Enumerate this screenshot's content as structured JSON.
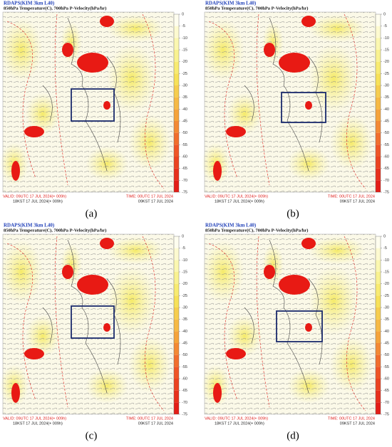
{
  "header": {
    "title": "RDAPS(KIM 3km L40)",
    "subtitle": "850hPa Temperature(C), 700hPa P-Velocity(hPa/hr)"
  },
  "footer": {
    "valid_utc": "VALID: 09UTC 17 JUL 2024(+ 009h)",
    "valid_kst": "18KST 17 JUL 2024(+ 009h)",
    "time_utc": "TIME: 00UTC 17 JUL 2024",
    "time_kst": "09KST 17 JUL 2024"
  },
  "colorbar": {
    "range": [
      0,
      -75
    ],
    "ticks": [
      0,
      -5,
      -10,
      -15,
      -20,
      -25,
      -30,
      -35,
      -40,
      -45,
      -50,
      -55,
      -60,
      -65,
      -70,
      -75
    ]
  },
  "panels": [
    {
      "label": "(a)"
    },
    {
      "label": "(b)"
    },
    {
      "label": "(c)"
    },
    {
      "label": "(d)"
    }
  ]
}
